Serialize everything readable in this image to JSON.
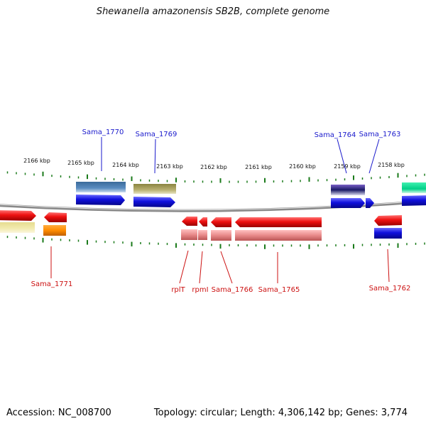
{
  "title": "Shewanella amazonensis SB2B, complete genome",
  "footer": {
    "accession": "Accession: NC_008700",
    "summary": "Topology: circular; Length: 4,306,142 bp; Genes: 3,774"
  },
  "scale_labels": [
    "2166 kbp",
    "2165 kbp",
    "2164 kbp",
    "2163 kbp",
    "2162 kbp",
    "2161 kbp",
    "2160 kbp",
    "2159 kbp",
    "2158 kbp"
  ],
  "gene_labels_top": [
    "Sama_1770",
    "Sama_1769",
    "Sama_1764",
    "Sama_1763"
  ],
  "gene_labels_bottom": [
    "Sama_1771",
    "rplT",
    "rpmI",
    "Sama_1766",
    "Sama_1765",
    "Sama_1762"
  ],
  "colors": {
    "top_label": "#1a1acc",
    "bottom_label": "#cc1111",
    "cds_blue": "#1010dd",
    "cds_red": "#ee1111",
    "rrna_pink": "#e88a8a",
    "tick": "#1a7a1a"
  }
}
